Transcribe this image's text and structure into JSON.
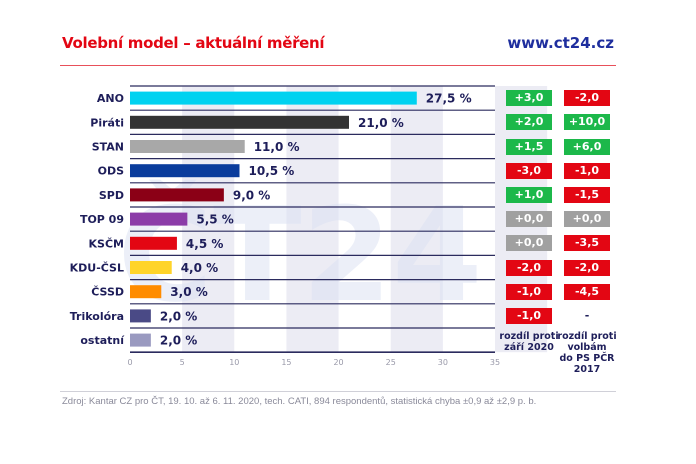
{
  "header": {
    "title": "Volební model – aktuální měření",
    "site": "www.ct24.cz"
  },
  "footer": {
    "source": "Zdroj: Kantar CZ pro ČT, 19. 10. až 6. 11. 2020, tech. CATI, 894 respondentů, statistická chyba ±0,9 až ±2,9 p. b."
  },
  "watermark": "ČT24",
  "colors": {
    "positive": "#1cb84a",
    "negative": "#e30613",
    "neutral": "#a0a0a0",
    "axis": "#2b2b5e",
    "text": "#1e1e5a"
  },
  "chart_data": {
    "type": "bar",
    "orientation": "horizontal",
    "title": "Volební model – aktuální měření",
    "xlim": [
      0,
      35
    ],
    "xticks": [
      "0",
      "5",
      "10",
      "15",
      "20",
      "25",
      "30",
      "35"
    ],
    "grid": "alternating vertical bands",
    "categories": [
      "ANO",
      "Piráti",
      "STAN",
      "ODS",
      "SPD",
      "TOP 09",
      "KSČM",
      "KDU-ČSL",
      "ČSSD",
      "Trikolóra",
      "ostatní"
    ],
    "values": [
      27.5,
      21.0,
      11.0,
      10.5,
      9.0,
      5.5,
      4.5,
      4.0,
      3.0,
      2.0,
      2.0
    ],
    "value_labels": [
      "27,5 %",
      "21,0 %",
      "11,0 %",
      "10,5 %",
      "9,0 %",
      "5,5 %",
      "4,5 %",
      "4,0 %",
      "3,0 %",
      "2,0 %",
      "2,0 %"
    ],
    "bar_colors": [
      "#00d2f0",
      "#333333",
      "#a8a8a8",
      "#0a3c9c",
      "#8b0016",
      "#8c3ca8",
      "#e30613",
      "#ffd42a",
      "#ff8c00",
      "#4a4a86",
      "#9a9ac0"
    ],
    "difference_columns": [
      {
        "header": [
          "rozdíl proti",
          "září 2020"
        ],
        "values": [
          "+3,0",
          "+2,0",
          "+1,5",
          "-3,0",
          "+1,0",
          "+0,0",
          "+0,0",
          "-2,0",
          "-1,0",
          "-1,0",
          null
        ],
        "status": [
          "pos",
          "pos",
          "pos",
          "neg",
          "pos",
          "neu",
          "neu",
          "neg",
          "neg",
          "neg",
          null
        ]
      },
      {
        "header": [
          "rozdíl proti",
          "volbám",
          "do PS PČR",
          "2017"
        ],
        "values": [
          "-2,0",
          "+10,0",
          "+6,0",
          "-1,0",
          "-1,5",
          "+0,0",
          "-3,5",
          "-2,0",
          "-4,5",
          "-",
          null
        ],
        "status": [
          "neg",
          "pos",
          "pos",
          "neg",
          "neg",
          "neu",
          "neg",
          "neg",
          "neg",
          "dash",
          null
        ]
      }
    ]
  }
}
